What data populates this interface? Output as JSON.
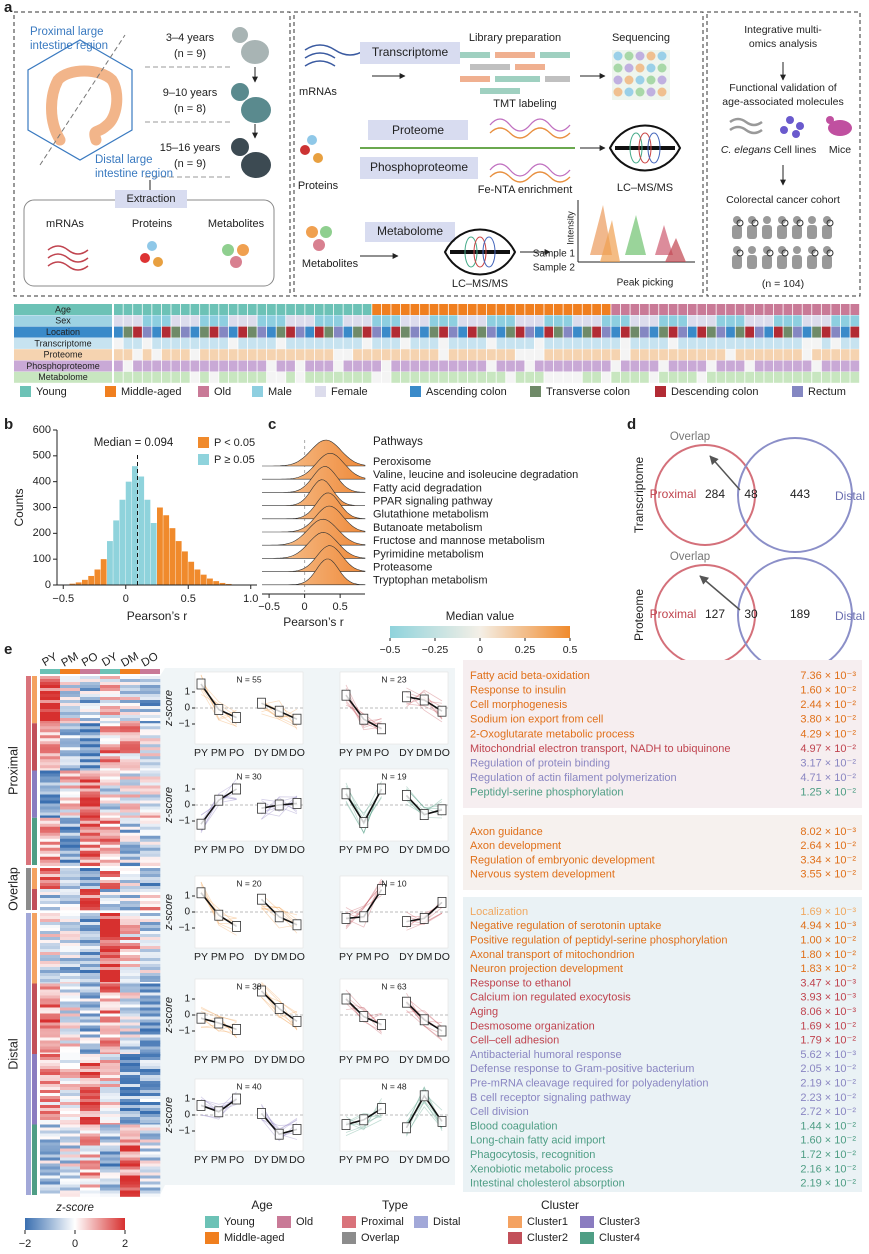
{
  "panel_a": {
    "label": "a",
    "proximal_region": [
      "Proximal large",
      "intestine region"
    ],
    "distal_region": [
      "Distal large",
      "intestine region"
    ],
    "age_groups": [
      {
        "years": "3–4 years",
        "n": "(n = 9)"
      },
      {
        "years": "9–10 years",
        "n": "(n = 8)"
      },
      {
        "years": "15–16 years",
        "n": "(n = 9)"
      }
    ],
    "extraction": "Extraction",
    "extracts": [
      "mRNAs",
      "Proteins",
      "Metabolites"
    ],
    "transcriptome": {
      "input": "mRNAs",
      "method": "Transcriptome",
      "step1": "Library preparation",
      "step2": "Sequencing"
    },
    "proteome": {
      "input": "Proteins",
      "methods": [
        "Proteome",
        "Phosphoproteome"
      ],
      "labeling": "TMT labeling",
      "enrichment": "Fe-NTA enrichment",
      "instrument": "LC–MS/MS"
    },
    "metabolome": {
      "input": "Metabolites",
      "method": "Metabolome",
      "instrument": "LC–MS/MS",
      "intensity": "Intensity",
      "samples": [
        "Sample 1",
        "Sample 2"
      ],
      "peak": "Peak picking"
    },
    "integrative": {
      "title": [
        "Integrative multi-",
        "omics analysis"
      ],
      "validation": [
        "Functional validation of",
        "age-associated molecules"
      ],
      "models": [
        "C. elegans",
        "Cell lines",
        "Mice"
      ],
      "cohort": "Colorectal cancer cohort",
      "cohort_n": "(n = 104)"
    },
    "tracks": [
      "Age",
      "Sex",
      "Location",
      "Transcriptome",
      "Proteome",
      "Phosphoproteome",
      "Metabolome"
    ],
    "legend": [
      {
        "name": "Young",
        "color": "#6cc2b6"
      },
      {
        "name": "Middle-aged",
        "color": "#f07f1f"
      },
      {
        "name": "Old",
        "color": "#c97a97"
      },
      {
        "name": "Male",
        "color": "#8ecfe0"
      },
      {
        "name": "Female",
        "color": "#dcdcec"
      },
      {
        "name": "Ascending colon",
        "color": "#3a8ac9"
      },
      {
        "name": "Transverse colon",
        "color": "#6f8a68"
      },
      {
        "name": "Descending colon",
        "color": "#b22b34"
      },
      {
        "name": "Rectum",
        "color": "#8487c2"
      }
    ]
  },
  "panel_b": {
    "label": "b",
    "chart_data": {
      "type": "histogram",
      "xlabel": "Pearson’s r",
      "ylabel": "Counts",
      "bins": [
        -0.45,
        -0.4,
        -0.35,
        -0.3,
        -0.25,
        -0.2,
        -0.15,
        -0.1,
        -0.05,
        0,
        0.05,
        0.1,
        0.15,
        0.2,
        0.25,
        0.3,
        0.35,
        0.4,
        0.45,
        0.5,
        0.55,
        0.6,
        0.65,
        0.7,
        0.75,
        0.8,
        0.85
      ],
      "values": [
        5,
        10,
        20,
        35,
        60,
        100,
        170,
        250,
        330,
        400,
        460,
        420,
        330,
        240,
        300,
        270,
        220,
        170,
        130,
        90,
        60,
        40,
        25,
        15,
        8,
        4
      ],
      "bar_colors": [
        "#f08a2c",
        "#f08a2c",
        "#f08a2c",
        "#f08a2c",
        "#f08a2c",
        "#f08a2c",
        "#8fd3dc",
        "#8fd3dc",
        "#8fd3dc",
        "#8fd3dc",
        "#8fd3dc",
        "#8fd3dc",
        "#8fd3dc",
        "#8fd3dc",
        "#f08a2c",
        "#f08a2c",
        "#f08a2c",
        "#f08a2c",
        "#f08a2c",
        "#f08a2c",
        "#f08a2c",
        "#f08a2c",
        "#f08a2c",
        "#f08a2c",
        "#f08a2c",
        "#f08a2c"
      ],
      "xlim": [
        -0.55,
        1.05
      ],
      "ylim": [
        0,
        600
      ],
      "xticks": [
        {
          "value": -0.5,
          "label": "−0.5"
        },
        0,
        0.5,
        {
          "value": 1,
          "label": "1.0"
        }
      ],
      "yticks": [
        0,
        100,
        200,
        300,
        400,
        500,
        600
      ],
      "median": 0.094,
      "median_label": "Median = 0.094",
      "legend": [
        {
          "name": "P < 0.05",
          "color": "#f08a2c"
        },
        {
          "name": "P ≥ 0.05",
          "color": "#8fd3dc"
        }
      ]
    }
  },
  "panel_c": {
    "label": "c",
    "title": "Pathways",
    "pathways": [
      "Peroxisome",
      "Valine, leucine and isoleucine degradation",
      "Fatty acid degradation",
      "PPAR signaling pathway",
      "Glutathione metabolism",
      "Butanoate metabolism",
      "Fructose and mannose metabolism",
      "Pyrimidine metabolism",
      "Proteasome",
      "Tryptophan metabolism"
    ],
    "xlabel": "Pearson’s r",
    "xlim": [
      -0.6,
      0.85
    ],
    "xticks": [
      {
        "value": -0.5,
        "label": "−0.5"
      },
      0,
      0.5
    ],
    "colorbar": {
      "title": "Median value",
      "ticks": [
        {
          "value": -0.5,
          "label": "−0.5"
        },
        {
          "value": -0.25,
          "label": "−0.25"
        },
        0,
        0.25,
        0.5
      ]
    }
  },
  "panel_d": {
    "label": "d",
    "venns": [
      {
        "row": "Transcriptome",
        "overlap_label": "Overlap",
        "proximal": "Proximal",
        "distal": "Distal",
        "proximal_only": "284",
        "overlap": "48",
        "distal_only": "443"
      },
      {
        "row": "Proteome",
        "overlap_label": "Overlap",
        "proximal": "Proximal",
        "distal": "Distal",
        "proximal_only": "127",
        "overlap": "30",
        "distal_only": "189"
      }
    ]
  },
  "panel_e": {
    "label": "e",
    "columns": [
      "PY",
      "PM",
      "PO",
      "DY",
      "DM",
      "DO"
    ],
    "groups": [
      "Proximal",
      "Overlap",
      "Distal"
    ],
    "ylabel": "z-score",
    "ylim": [
      -2,
      2
    ],
    "yticks": [
      {
        "value": -1,
        "label": "−1"
      },
      0,
      1
    ],
    "line_panels": [
      {
        "n_label": "N = 55",
        "color": "#f0a050",
        "values": [
          1.5,
          -0.1,
          -0.6,
          0.3,
          -0.2,
          -0.7
        ]
      },
      {
        "n_label": "N = 23",
        "color": "#c2505a",
        "values": [
          0.8,
          -0.7,
          -1.3,
          0.7,
          0.5,
          -0.2
        ]
      },
      {
        "n_label": "N = 30",
        "color": "#8a7cc0",
        "values": [
          -1.2,
          0.3,
          1.0,
          -0.2,
          0,
          0.1
        ]
      },
      {
        "n_label": "N = 19",
        "color": "#4f9e85",
        "values": [
          0.7,
          -1.1,
          1.0,
          0.6,
          -0.6,
          -0.3
        ]
      },
      {
        "n_label": "N = 20",
        "color": "#f0a050",
        "values": [
          1.2,
          -0.2,
          -0.9,
          0.8,
          -0.3,
          -0.8
        ]
      },
      {
        "n_label": "N = 10",
        "color": "#c2505a",
        "values": [
          -0.4,
          -0.3,
          1.4,
          -0.6,
          -0.4,
          0.6
        ]
      },
      {
        "n_label": "N = 38",
        "color": "#f0a050",
        "values": [
          -0.2,
          -0.5,
          -0.9,
          1.5,
          0.4,
          -0.4
        ]
      },
      {
        "n_label": "N = 63",
        "color": "#c2505a",
        "values": [
          1.0,
          -0.1,
          -0.6,
          0.8,
          -0.3,
          -1.0
        ]
      },
      {
        "n_label": "N = 40",
        "color": "#8a7cc0",
        "values": [
          0.6,
          0.2,
          1.0,
          0.1,
          -1.2,
          -0.9
        ]
      },
      {
        "n_label": "N = 48",
        "color": "#4f9e85",
        "values": [
          -0.6,
          -0.3,
          0.4,
          -0.8,
          1.2,
          -0.4
        ]
      }
    ],
    "enrichment": [
      {
        "items": [
          {
            "term": "Fatty acid beta-oxidation",
            "p": "7.36 × 10⁻³",
            "color": "#e0701a"
          },
          {
            "term": "Response to insulin",
            "p": "1.60 × 10⁻²",
            "color": "#e0701a"
          },
          {
            "term": "Cell morphogenesis",
            "p": "2.44 × 10⁻²",
            "color": "#e0701a"
          },
          {
            "term": "Sodium ion export from cell",
            "p": "3.80 × 10⁻²",
            "color": "#e0701a"
          },
          {
            "term": "2-Oxoglutarate metabolic process",
            "p": "4.29 × 10⁻²",
            "color": "#e0701a"
          },
          {
            "term": "Mitochondrial electron transport, NADH to ubiquinone",
            "p": "4.97 × 10⁻²",
            "color": "#c0444f"
          },
          {
            "term": "Regulation of protein binding",
            "p": "3.17 × 10⁻²",
            "color": "#8a86c2"
          },
          {
            "term": "Regulation of actin filament polymerization",
            "p": "4.71 × 10⁻²",
            "color": "#8a86c2"
          },
          {
            "term": "Peptidyl-serine phosphorylation",
            "p": "1.25 × 10⁻²",
            "color": "#4f9e85"
          }
        ]
      },
      {
        "items": [
          {
            "term": "Axon guidance",
            "p": "8.02 × 10⁻³",
            "color": "#e0701a"
          },
          {
            "term": "Axon development",
            "p": "2.64 × 10⁻²",
            "color": "#e0701a"
          },
          {
            "term": "Regulation of embryonic development",
            "p": "3.34 × 10⁻²",
            "color": "#e0701a"
          },
          {
            "term": "Nervous system development",
            "p": "3.55 × 10⁻²",
            "color": "#e0701a"
          }
        ]
      },
      {
        "items": [
          {
            "term": "Localization",
            "p": "1.69 × 10⁻³",
            "color": "#f0a860"
          },
          {
            "term": "Negative regulation of serotonin uptake",
            "p": "4.94 × 10⁻³",
            "color": "#e0701a"
          },
          {
            "term": "Positive regulation of peptidyl-serine phosphorylation",
            "p": "1.00 × 10⁻²",
            "color": "#e0701a"
          },
          {
            "term": "Axonal transport of mitochondrion",
            "p": "1.80 × 10⁻²",
            "color": "#e0701a"
          },
          {
            "term": "Neuron projection development",
            "p": "1.83 × 10⁻²",
            "color": "#e0701a"
          },
          {
            "term": "Response to ethanol",
            "p": "3.47 × 10⁻³",
            "color": "#c0444f"
          },
          {
            "term": "Calcium ion regulated exocytosis",
            "p": "3.93 × 10⁻³",
            "color": "#c0444f"
          },
          {
            "term": "Aging",
            "p": "8.06 × 10⁻³",
            "color": "#c0444f"
          },
          {
            "term": "Desmosome organization",
            "p": "1.69 × 10⁻²",
            "color": "#c0444f"
          },
          {
            "term": "Cell–cell adhesion",
            "p": "1.79 × 10⁻²",
            "color": "#c0444f"
          },
          {
            "term": "Antibacterial humoral response",
            "p": "5.62 × 10⁻³",
            "color": "#8a86c2"
          },
          {
            "term": "Defense response to Gram-positive bacterium",
            "p": "2.05 × 10⁻²",
            "color": "#8a86c2"
          },
          {
            "term": "Pre-mRNA cleavage required for polyadenylation",
            "p": "2.19 × 10⁻²",
            "color": "#8a86c2"
          },
          {
            "term": "B cell receptor signaling pathway",
            "p": "2.23 × 10⁻²",
            "color": "#8a86c2"
          },
          {
            "term": "Cell division",
            "p": "2.72 × 10⁻²",
            "color": "#8a86c2"
          },
          {
            "term": "Blood coagulation",
            "p": "1.44 × 10⁻²",
            "color": "#4f9e85"
          },
          {
            "term": "Long-chain fatty acid import",
            "p": "1.60 × 10⁻²",
            "color": "#4f9e85"
          },
          {
            "term": "Phagocytosis, recognition",
            "p": "1.72 × 10⁻²",
            "color": "#4f9e85"
          },
          {
            "term": "Xenobiotic metabolic process",
            "p": "2.16 × 10⁻²",
            "color": "#4f9e85"
          },
          {
            "term": "Intestinal cholesterol absorption",
            "p": "2.19 × 10⁻²",
            "color": "#4f9e85"
          }
        ]
      }
    ],
    "legend_zscore": {
      "title": "z-score",
      "ticks": [
        {
          "value": -2,
          "label": "−2"
        },
        0,
        2
      ]
    },
    "legend_age": {
      "title": "Age",
      "items": [
        {
          "name": "Young",
          "color": "#6cc2b6"
        },
        {
          "name": "Old",
          "color": "#c97a97"
        },
        {
          "name": "Middle-aged",
          "color": "#f07f1f"
        }
      ]
    },
    "legend_type": {
      "title": "Type",
      "items": [
        {
          "name": "Proximal",
          "color": "#d9737b"
        },
        {
          "name": "Distal",
          "color": "#a2a8d8"
        },
        {
          "name": "Overlap",
          "color": "#8c8c8c"
        }
      ]
    },
    "legend_cluster": {
      "title": "Cluster",
      "items": [
        {
          "name": "Cluster1",
          "color": "#f4a261"
        },
        {
          "name": "Cluster3",
          "color": "#8a7cc0"
        },
        {
          "name": "Cluster2",
          "color": "#c2505a"
        },
        {
          "name": "Cluster4",
          "color": "#4f9e85"
        }
      ]
    }
  }
}
